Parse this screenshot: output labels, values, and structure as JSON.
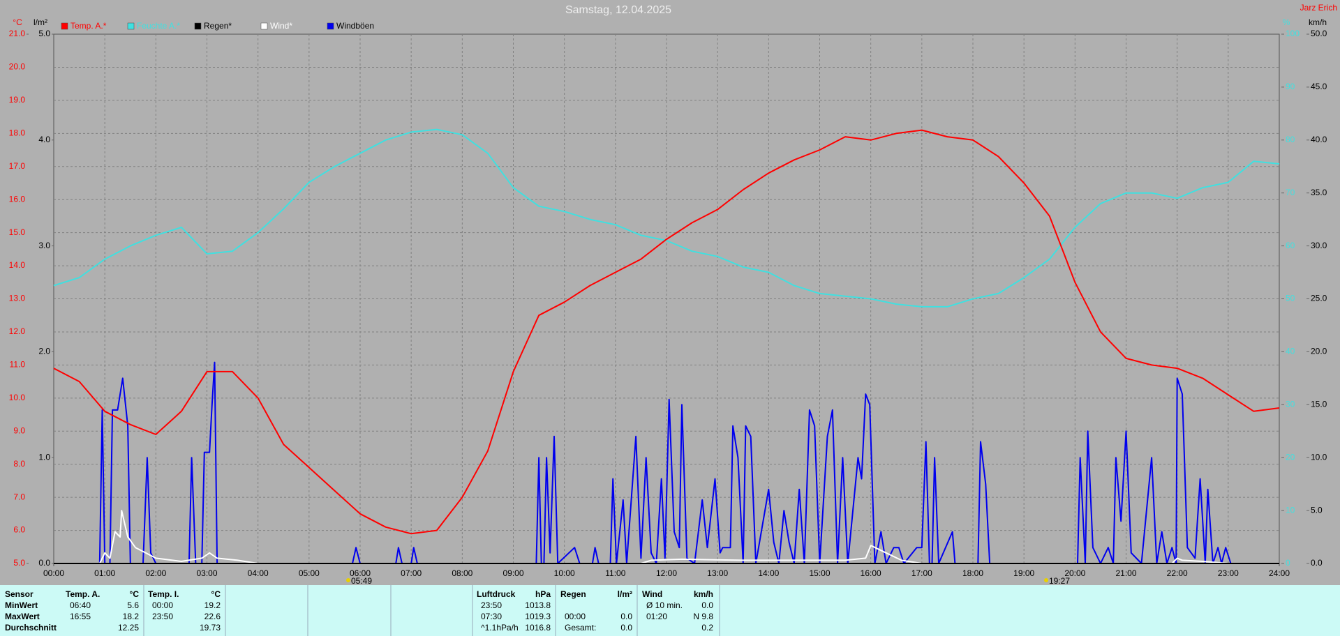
{
  "chart_data": {
    "type": "line",
    "title": "Samstag, 12.04.2025",
    "author": "Jarz Erich",
    "y_label": "°C",
    "y2_label": "l/m²",
    "y3_label": "%",
    "y4_label": "km/h",
    "grid": true,
    "xlim": [
      0,
      24
    ],
    "xticks": [
      {
        "value": 0,
        "label": "00:00"
      },
      {
        "value": 1,
        "label": "01:00"
      },
      {
        "value": 2,
        "label": "02:00"
      },
      {
        "value": 3,
        "label": "03:00"
      },
      {
        "value": 4,
        "label": "04:00"
      },
      {
        "value": 5,
        "label": "05:00"
      },
      {
        "value": 6,
        "label": "06:00"
      },
      {
        "value": 7,
        "label": "07:00"
      },
      {
        "value": 8,
        "label": "08:00"
      },
      {
        "value": 9,
        "label": "09:00"
      },
      {
        "value": 10,
        "label": "10:00"
      },
      {
        "value": 11,
        "label": "11:00"
      },
      {
        "value": 12,
        "label": "12:00"
      },
      {
        "value": 13,
        "label": "13:00"
      },
      {
        "value": 14,
        "label": "14:00"
      },
      {
        "value": 15,
        "label": "15:00"
      },
      {
        "value": 16,
        "label": "16:00"
      },
      {
        "value": 17,
        "label": "17:00"
      },
      {
        "value": 18,
        "label": "18:00"
      },
      {
        "value": 19,
        "label": "19:00"
      },
      {
        "value": 20,
        "label": "20:00"
      },
      {
        "value": 21,
        "label": "21:00"
      },
      {
        "value": 22,
        "label": "22:00"
      },
      {
        "value": 23,
        "label": "23:00"
      },
      {
        "value": 24,
        "label": "24:00"
      }
    ],
    "ylim": [
      5,
      21
    ],
    "yticks": [
      {
        "value": 5,
        "label": "5.0"
      },
      {
        "value": 6,
        "label": "6.0"
      },
      {
        "value": 7,
        "label": "7.0"
      },
      {
        "value": 8,
        "label": "8.0"
      },
      {
        "value": 9,
        "label": "9.0"
      },
      {
        "value": 10,
        "label": "10.0"
      },
      {
        "value": 11,
        "label": "11.0"
      },
      {
        "value": 12,
        "label": "12.0"
      },
      {
        "value": 13,
        "label": "13.0"
      },
      {
        "value": 14,
        "label": "14.0"
      },
      {
        "value": 15,
        "label": "15.0"
      },
      {
        "value": 16,
        "label": "16.0"
      },
      {
        "value": 17,
        "label": "17.0"
      },
      {
        "value": 18,
        "label": "18.0"
      },
      {
        "value": 19,
        "label": "19.0"
      },
      {
        "value": 20,
        "label": "20.0"
      },
      {
        "value": 21,
        "label": "21.0"
      }
    ],
    "y2lim": [
      0,
      5
    ],
    "y2ticks": [
      {
        "value": 0,
        "label": "0.0"
      },
      {
        "value": 1,
        "label": "1.0"
      },
      {
        "value": 2,
        "label": "2.0"
      },
      {
        "value": 3,
        "label": "3.0"
      },
      {
        "value": 4,
        "label": "4.0"
      },
      {
        "value": 5,
        "label": "5.0"
      }
    ],
    "y3lim": [
      0,
      100
    ],
    "y3ticks": [
      0,
      10,
      20,
      30,
      40,
      50,
      60,
      70,
      80,
      90,
      100
    ],
    "y4lim": [
      0,
      50
    ],
    "y4ticks": [
      {
        "value": 0,
        "label": "0.0"
      },
      {
        "value": 5,
        "label": "5.0"
      },
      {
        "value": 10,
        "label": "10.0"
      },
      {
        "value": 15,
        "label": "15.0"
      },
      {
        "value": 20,
        "label": "20.0"
      },
      {
        "value": 25,
        "label": "25.0"
      },
      {
        "value": 30,
        "label": "30.0"
      },
      {
        "value": 35,
        "label": "35.0"
      },
      {
        "value": 40,
        "label": "40.0"
      },
      {
        "value": 45,
        "label": "45.0"
      },
      {
        "value": 50,
        "label": "50.0"
      }
    ],
    "x": [
      0,
      0.5,
      1,
      1.5,
      2,
      2.5,
      3,
      3.5,
      4,
      4.5,
      5,
      5.5,
      6,
      6.5,
      7,
      7.5,
      8,
      8.5,
      9,
      9.5,
      10,
      10.5,
      11,
      11.5,
      12,
      12.5,
      13,
      13.5,
      14,
      14.5,
      15,
      15.5,
      16,
      16.5,
      17,
      17.5,
      18,
      18.5,
      19,
      19.5,
      20,
      20.5,
      21,
      21.5,
      22,
      22.5,
      23,
      23.5,
      24
    ],
    "series": [
      {
        "name": "Windböen",
        "color": "#0000ee",
        "axis": "y4",
        "x": [
          0,
          0.9,
          0.95,
          1.0,
          1.1,
          1.15,
          1.25,
          1.35,
          1.45,
          1.5,
          1.75,
          1.83,
          1.9,
          2.0,
          2.65,
          2.7,
          2.78,
          2.9,
          2.95,
          3.05,
          3.1,
          3.15,
          3.2,
          5.85,
          5.92,
          6.0,
          6.7,
          6.75,
          6.82,
          7.0,
          7.05,
          7.12,
          9.45,
          9.5,
          9.55,
          9.6,
          9.65,
          9.72,
          9.8,
          9.87,
          10.2,
          10.3,
          10.55,
          10.6,
          10.67,
          10.9,
          10.95,
          11.02,
          11.15,
          11.22,
          11.4,
          11.5,
          11.6,
          11.7,
          11.8,
          11.9,
          11.97,
          12.05,
          12.15,
          12.25,
          12.3,
          12.4,
          12.55,
          12.7,
          12.8,
          12.95,
          13.05,
          13.1,
          13.25,
          13.3,
          13.4,
          13.5,
          13.55,
          13.65,
          13.75,
          14.0,
          14.1,
          14.2,
          14.3,
          14.4,
          14.5,
          14.6,
          14.7,
          14.8,
          14.9,
          15.0,
          15.15,
          15.25,
          15.35,
          15.45,
          15.55,
          15.75,
          15.82,
          15.9,
          15.98,
          16.08,
          16.2,
          16.3,
          16.45,
          16.55,
          16.65,
          16.9,
          17.0,
          17.08,
          17.15,
          17.2,
          17.25,
          17.33,
          17.6,
          17.65,
          18.1,
          18.15,
          18.25,
          18.33,
          20.05,
          20.1,
          20.2,
          20.25,
          20.35,
          20.5,
          20.65,
          20.75,
          20.8,
          20.9,
          21.0,
          21.1,
          21.3,
          21.4,
          21.5,
          21.6,
          21.7,
          21.8,
          21.9,
          21.98,
          22.0,
          22.1,
          22.2,
          22.35,
          22.45,
          22.55,
          22.6,
          22.7,
          22.8,
          22.87,
          22.95,
          23.05
        ],
        "values": [
          0,
          0,
          14.5,
          0,
          0,
          14.5,
          14.5,
          17.5,
          13,
          0,
          0,
          10,
          1,
          0,
          0,
          10,
          0,
          0,
          10.5,
          10.5,
          15,
          19,
          0,
          0,
          1.5,
          0,
          0,
          1.5,
          0,
          0,
          1.5,
          0,
          0,
          10,
          0,
          0,
          10,
          1,
          12,
          0,
          1.5,
          0,
          0,
          1.5,
          0,
          0,
          8,
          0,
          6,
          0,
          12,
          0.5,
          10,
          1,
          0,
          8,
          0.5,
          15.5,
          3,
          1.5,
          15,
          0.5,
          0,
          6,
          1.5,
          8,
          1,
          1.5,
          1.5,
          13,
          10,
          0,
          13,
          12,
          0,
          7,
          2,
          0,
          5,
          2,
          0,
          7,
          0,
          14.5,
          13,
          0,
          12,
          14.5,
          0,
          10,
          0,
          10,
          8,
          16,
          15,
          0,
          3,
          0,
          1.5,
          1.5,
          0,
          1.5,
          1.5,
          11.5,
          0,
          0,
          10,
          0,
          3,
          0,
          0,
          11.5,
          7.5,
          0,
          0,
          10,
          0,
          12.5,
          1.5,
          0,
          1.5,
          0,
          10,
          4,
          12.5,
          1,
          0,
          5,
          10,
          0,
          3,
          0,
          1.5,
          0,
          17.5,
          16,
          1.5,
          0.5,
          8,
          0,
          7,
          0,
          1.5,
          0,
          1.5,
          0
        ]
      },
      {
        "name": "Wind*",
        "color": "#ffffff",
        "axis": "y4",
        "x": [
          0,
          0.9,
          1.0,
          1.1,
          1.2,
          1.3,
          1.33,
          1.45,
          1.6,
          1.8,
          2.0,
          2.5,
          2.9,
          3.05,
          3.2,
          3.6,
          4.0,
          11.5,
          11.7,
          12.3,
          13.5,
          15.5,
          15.9,
          16.0,
          16.3,
          16.6,
          17.0,
          21.9,
          22.0,
          22.1,
          22.5,
          23.0
        ],
        "values": [
          0,
          0,
          1,
          0.5,
          3,
          2.5,
          5,
          2.5,
          1.5,
          1,
          0.5,
          0.2,
          0.5,
          1,
          0.5,
          0.3,
          0,
          0,
          0.3,
          0.4,
          0.3,
          0.3,
          0.5,
          1.7,
          1,
          0.3,
          0,
          0,
          0.5,
          0.3,
          0.2,
          0
        ]
      },
      {
        "name": "Regen*",
        "color": "#000000",
        "axis": "y2",
        "x": [
          0,
          24
        ],
        "values": [
          0,
          0
        ]
      },
      {
        "name": "Feuchte A.*",
        "color": "#40e0e0",
        "axis": "y3",
        "values": [
          52.5,
          54,
          57.5,
          60,
          62,
          63.5,
          58.5,
          59,
          62.5,
          67,
          72,
          75,
          77.5,
          80,
          81.5,
          82,
          81,
          77.5,
          71,
          67.5,
          66.5,
          65,
          64,
          62,
          61,
          59,
          58,
          56,
          55,
          52.5,
          51,
          50.5,
          50,
          49,
          48.5,
          48.5,
          50,
          51,
          54,
          57.5,
          63.5,
          68,
          70,
          70,
          69,
          71,
          72,
          76,
          75.5
        ]
      },
      {
        "name": "Temp. A.*",
        "color": "#ff0000",
        "values": [
          10.9,
          10.5,
          9.6,
          9.2,
          8.9,
          9.6,
          10.8,
          10.8,
          10.0,
          8.6,
          7.9,
          7.2,
          6.5,
          6.1,
          5.9,
          6.0,
          7.0,
          8.4,
          10.8,
          12.5,
          12.9,
          13.4,
          13.8,
          14.2,
          14.8,
          15.3,
          15.7,
          16.3,
          16.8,
          17.2,
          17.5,
          17.9,
          17.8,
          18.0,
          18.1,
          17.9,
          17.8,
          17.3,
          16.5,
          15.5,
          13.5,
          12.0,
          11.2,
          11.0,
          10.9,
          10.6,
          10.1,
          9.6,
          9.7
        ]
      }
    ],
    "annotations": [
      "05:49",
      "19:27"
    ]
  },
  "stats": {
    "sensor": {
      "header": "Sensor",
      "rows": [
        "MinWert",
        "MaxWert",
        "Durchschnitt"
      ]
    },
    "blocks": [
      {
        "header": [
          "Temp. A.",
          "°C"
        ],
        "rows": [
          [
            "06:40",
            "5.6"
          ],
          [
            "16:55",
            "18.2"
          ],
          [
            null,
            "12.25"
          ]
        ]
      },
      {
        "header": [
          "Temp. I.",
          "°C"
        ],
        "rows": [
          [
            "00:00",
            "19.2"
          ],
          [
            "23:50",
            "22.6"
          ],
          [
            null,
            "19.73"
          ]
        ]
      },
      {
        "header": [
          "Luftdruck",
          "hPa"
        ],
        "rows": [
          [
            "23:50",
            "1013.8"
          ],
          [
            "07:30",
            "1019.3"
          ],
          [
            "^1.1hPa/h",
            "1016.8"
          ]
        ]
      },
      {
        "header": [
          "Regen",
          "l/m²"
        ],
        "rows": [
          [
            null,
            null
          ],
          [
            "00:00",
            "0.0"
          ],
          [
            "Gesamt:",
            "0.0"
          ]
        ]
      },
      {
        "header": [
          "Wind",
          "km/h"
        ],
        "rows": [
          [
            "Ø 10 min.",
            "0.0"
          ],
          [
            "01:20",
            "N 9.8"
          ],
          [
            null,
            "0.2"
          ]
        ]
      }
    ]
  }
}
